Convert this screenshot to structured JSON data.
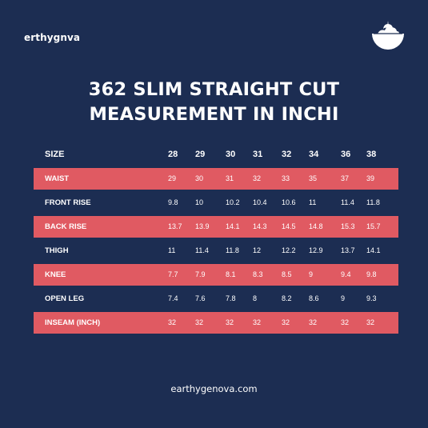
{
  "brand": "erthygnva",
  "logo_icon": "tree-bowl-logo-icon",
  "title_line1": "362 SLIM STRAIGHT CUT",
  "title_line2": "MEASUREMENT IN INCHI",
  "table": {
    "header": {
      "label": "SIZE",
      "sizes": [
        "28",
        "29",
        "30",
        "31",
        "32",
        "34",
        "36",
        "38"
      ]
    },
    "rows": [
      {
        "label": "WAIST",
        "values": [
          "29",
          "30",
          "31",
          "32",
          "33",
          "35",
          "37",
          "39"
        ],
        "highlight": true
      },
      {
        "label": "FRONT  RISE",
        "values": [
          "9.8",
          "10",
          "10.2",
          "10.4",
          "10.6",
          "11",
          "11.4",
          "11.8"
        ],
        "highlight": false
      },
      {
        "label": "BACK RISE",
        "values": [
          "13.7",
          "13.9",
          "14.1",
          "14.3",
          "14.5",
          "14.8",
          "15.3",
          "15.7"
        ],
        "highlight": true
      },
      {
        "label": "THIGH",
        "values": [
          "11",
          "11.4",
          "11.8",
          "12",
          "12.2",
          "12.9",
          "13.7",
          "14.1"
        ],
        "highlight": false
      },
      {
        "label": "KNEE",
        "values": [
          "7.7",
          "7.9",
          "8.1",
          "8.3",
          "8.5",
          "9",
          "9.4",
          "9.8"
        ],
        "highlight": true
      },
      {
        "label": "OPEN LEG",
        "values": [
          "7.4",
          "7.6",
          "7.8",
          "8",
          "8.2",
          "8.6",
          "9",
          "9.3"
        ],
        "highlight": false
      },
      {
        "label": "INSEAM (INCH)",
        "values": [
          "32",
          "32",
          "32",
          "32",
          "32",
          "32",
          "32",
          "32"
        ],
        "highlight": true
      }
    ],
    "highlight_color": "#e05a62"
  },
  "footer": "earthygenova.com",
  "colors": {
    "background": "#1c2d52",
    "text": "#ffffff",
    "accent": "#e05a62"
  }
}
